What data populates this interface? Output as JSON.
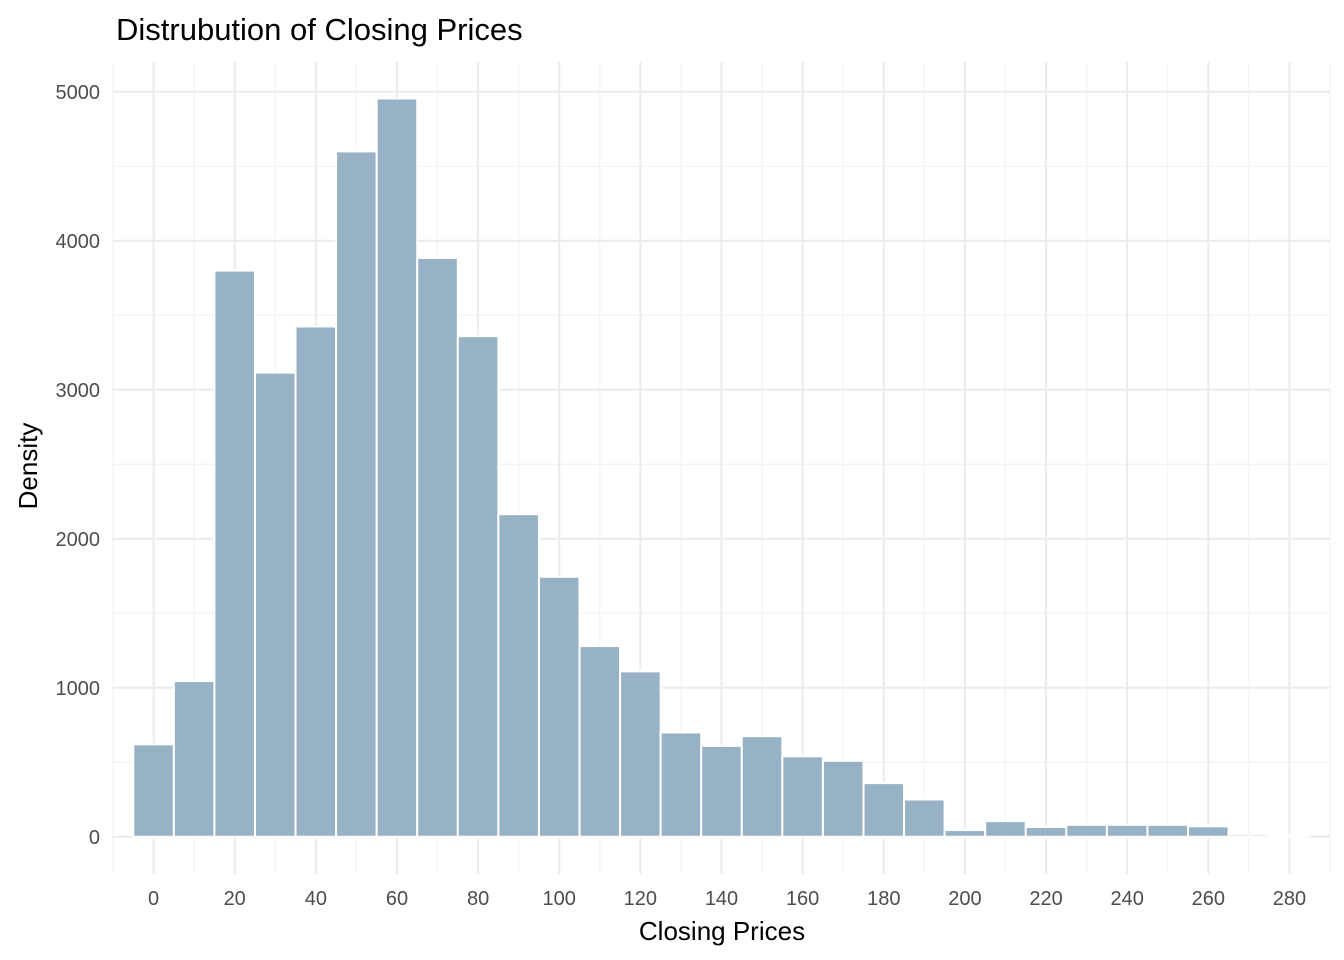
{
  "chart_data": {
    "type": "bar",
    "title": "Distrubution of Closing Prices",
    "xlabel": "Closing Prices",
    "ylabel": "Density",
    "bin_width": 10,
    "bin_centers": [
      0,
      10,
      20,
      30,
      40,
      50,
      60,
      70,
      80,
      90,
      100,
      110,
      120,
      130,
      140,
      150,
      160,
      170,
      180,
      190,
      200,
      210,
      220,
      230,
      240,
      250,
      260,
      270,
      280
    ],
    "values": [
      620,
      1045,
      3800,
      3115,
      3425,
      4600,
      4955,
      3885,
      3360,
      2165,
      1745,
      1280,
      1110,
      700,
      610,
      675,
      540,
      510,
      360,
      250,
      45,
      105,
      65,
      80,
      80,
      80,
      70,
      15,
      5
    ],
    "xlim": [
      -10,
      290
    ],
    "ylim": [
      -250,
      5200
    ],
    "x_ticks": [
      0,
      20,
      40,
      60,
      80,
      100,
      120,
      140,
      160,
      180,
      200,
      220,
      240,
      260,
      280
    ],
    "y_ticks": [
      0,
      1000,
      2000,
      3000,
      4000,
      5000
    ],
    "bar_color": "#97b2c5",
    "grid": true,
    "legend": "none"
  }
}
